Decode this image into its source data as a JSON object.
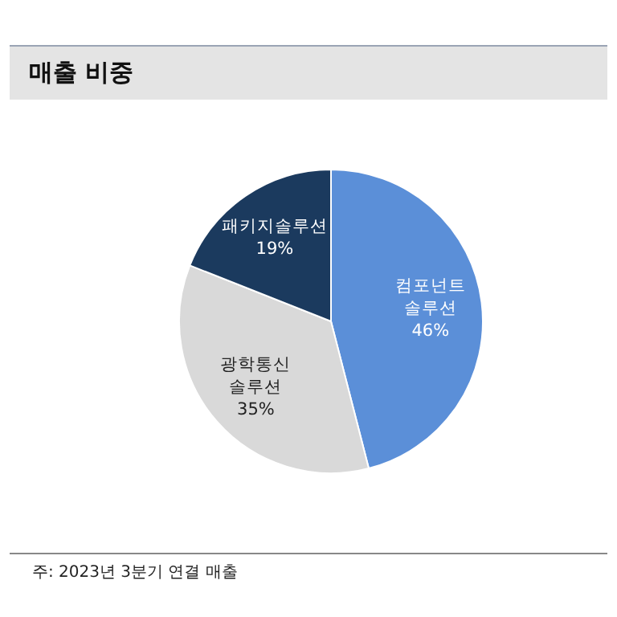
{
  "chart_data": {
    "type": "pie",
    "title": "매출 비중",
    "categories": [
      "컴포넌트솔루션",
      "광학통신솔루션",
      "패키지솔루션"
    ],
    "values": [
      46,
      35,
      19
    ],
    "colors": [
      "#5b8fd8",
      "#d9d9d9",
      "#1b3a5e"
    ],
    "value_labels": [
      "46%",
      "35%",
      "19%"
    ],
    "legend": false,
    "annotations": [
      "주: 2023년 3분기 연결 매출"
    ]
  }
}
